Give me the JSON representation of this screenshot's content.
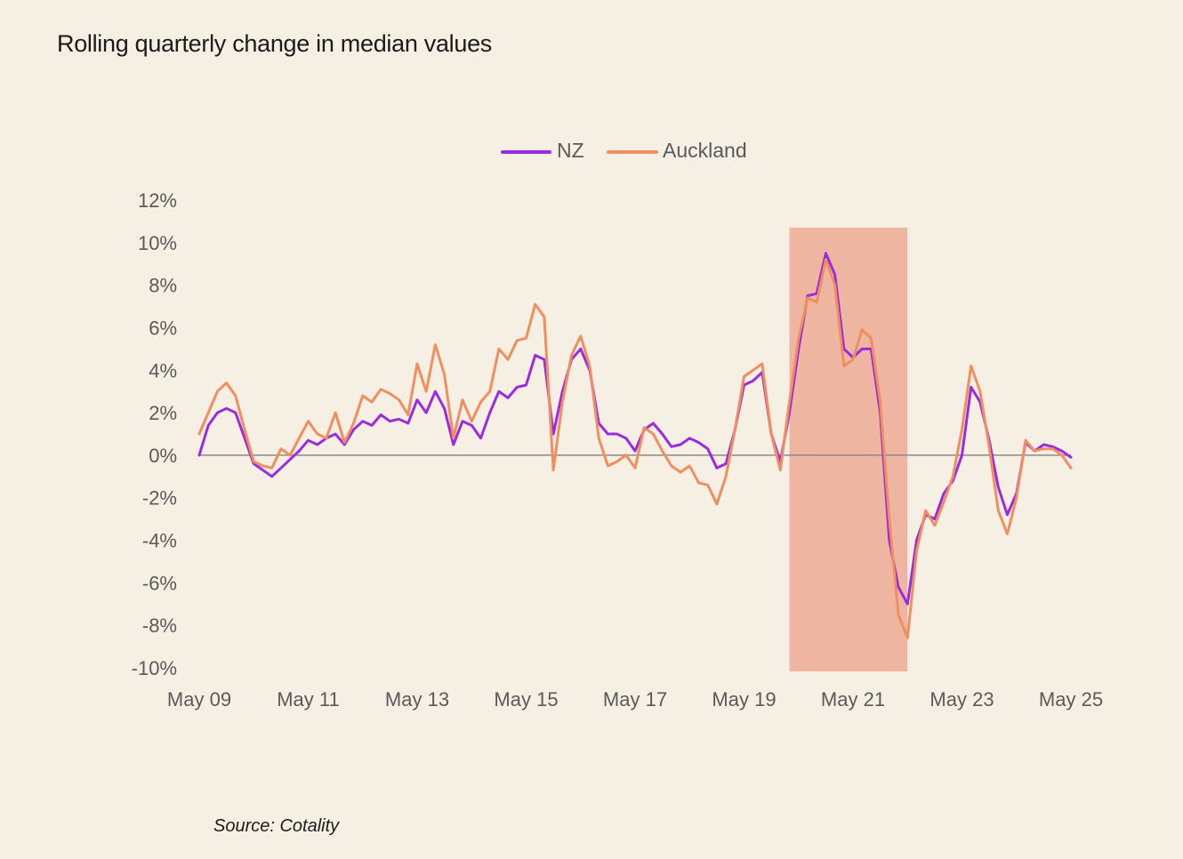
{
  "title": "Rolling quarterly change in median values",
  "source": "Source: Cotality",
  "chart_data": {
    "type": "line",
    "ylim": [
      -10,
      12
    ],
    "y_ticks": [
      12,
      10,
      8,
      6,
      4,
      2,
      0,
      -2,
      -4,
      -6,
      -8,
      -10
    ],
    "y_tick_labels": [
      "12%",
      "10%",
      "8%",
      "6%",
      "4%",
      "2%",
      "0%",
      "-2%",
      "-4%",
      "-6%",
      "-8%",
      "-10%"
    ],
    "x_range": [
      "2009-05",
      "2025-05"
    ],
    "x_ticks": [
      "2009-05",
      "2011-05",
      "2013-05",
      "2015-05",
      "2017-05",
      "2019-05",
      "2021-05",
      "2023-05",
      "2025-05"
    ],
    "x_tick_labels": [
      "May 09",
      "May 11",
      "May 13",
      "May 15",
      "May 17",
      "May 19",
      "May 21",
      "May 23",
      "May 25"
    ],
    "zero_line": true,
    "grid": false,
    "legend_position": "top-center",
    "highlight_band": {
      "from": "2020-03",
      "to": "2022-05",
      "color": "#eeb6a1"
    },
    "series": [
      {
        "name": "NZ",
        "color": "#9b2bdf",
        "points": [
          [
            "2009-05",
            0.0
          ],
          [
            "2009-07",
            1.4
          ],
          [
            "2009-09",
            2.0
          ],
          [
            "2009-11",
            2.2
          ],
          [
            "2010-01",
            2.0
          ],
          [
            "2010-03",
            0.8
          ],
          [
            "2010-05",
            -0.4
          ],
          [
            "2010-07",
            -0.7
          ],
          [
            "2010-09",
            -1.0
          ],
          [
            "2010-11",
            -0.6
          ],
          [
            "2011-01",
            -0.2
          ],
          [
            "2011-03",
            0.2
          ],
          [
            "2011-05",
            0.7
          ],
          [
            "2011-07",
            0.5
          ],
          [
            "2011-09",
            0.8
          ],
          [
            "2011-11",
            1.0
          ],
          [
            "2012-01",
            0.5
          ],
          [
            "2012-03",
            1.2
          ],
          [
            "2012-05",
            1.6
          ],
          [
            "2012-07",
            1.4
          ],
          [
            "2012-09",
            1.9
          ],
          [
            "2012-11",
            1.6
          ],
          [
            "2013-01",
            1.7
          ],
          [
            "2013-03",
            1.5
          ],
          [
            "2013-05",
            2.6
          ],
          [
            "2013-07",
            2.0
          ],
          [
            "2013-09",
            3.0
          ],
          [
            "2013-11",
            2.2
          ],
          [
            "2014-01",
            0.5
          ],
          [
            "2014-03",
            1.6
          ],
          [
            "2014-05",
            1.4
          ],
          [
            "2014-07",
            0.8
          ],
          [
            "2014-09",
            2.0
          ],
          [
            "2014-11",
            3.0
          ],
          [
            "2015-01",
            2.7
          ],
          [
            "2015-03",
            3.2
          ],
          [
            "2015-05",
            3.3
          ],
          [
            "2015-07",
            4.7
          ],
          [
            "2015-09",
            4.5
          ],
          [
            "2015-11",
            1.0
          ],
          [
            "2016-01",
            3.0
          ],
          [
            "2016-03",
            4.5
          ],
          [
            "2016-05",
            5.0
          ],
          [
            "2016-07",
            4.0
          ],
          [
            "2016-09",
            1.5
          ],
          [
            "2016-11",
            1.0
          ],
          [
            "2017-01",
            1.0
          ],
          [
            "2017-03",
            0.8
          ],
          [
            "2017-05",
            0.2
          ],
          [
            "2017-07",
            1.2
          ],
          [
            "2017-09",
            1.5
          ],
          [
            "2017-11",
            1.0
          ],
          [
            "2018-01",
            0.4
          ],
          [
            "2018-03",
            0.5
          ],
          [
            "2018-05",
            0.8
          ],
          [
            "2018-07",
            0.6
          ],
          [
            "2018-09",
            0.3
          ],
          [
            "2018-11",
            -0.6
          ],
          [
            "2019-01",
            -0.4
          ],
          [
            "2019-03",
            1.2
          ],
          [
            "2019-05",
            3.3
          ],
          [
            "2019-07",
            3.5
          ],
          [
            "2019-09",
            3.9
          ],
          [
            "2019-11",
            1.0
          ],
          [
            "2020-01",
            -0.3
          ],
          [
            "2020-03",
            2.0
          ],
          [
            "2020-05",
            5.0
          ],
          [
            "2020-07",
            7.5
          ],
          [
            "2020-09",
            7.6
          ],
          [
            "2020-11",
            9.5
          ],
          [
            "2021-01",
            8.5
          ],
          [
            "2021-03",
            5.0
          ],
          [
            "2021-05",
            4.6
          ],
          [
            "2021-07",
            5.0
          ],
          [
            "2021-09",
            5.0
          ],
          [
            "2021-11",
            2.0
          ],
          [
            "2022-01",
            -4.0
          ],
          [
            "2022-03",
            -6.2
          ],
          [
            "2022-05",
            -7.0
          ],
          [
            "2022-07",
            -4.0
          ],
          [
            "2022-09",
            -2.8
          ],
          [
            "2022-11",
            -3.0
          ],
          [
            "2023-01",
            -1.8
          ],
          [
            "2023-03",
            -1.2
          ],
          [
            "2023-05",
            0.0
          ],
          [
            "2023-07",
            3.2
          ],
          [
            "2023-09",
            2.5
          ],
          [
            "2023-11",
            0.7
          ],
          [
            "2024-01",
            -1.5
          ],
          [
            "2024-03",
            -2.8
          ],
          [
            "2024-05",
            -1.8
          ],
          [
            "2024-07",
            0.6
          ],
          [
            "2024-09",
            0.2
          ],
          [
            "2024-11",
            0.5
          ],
          [
            "2025-01",
            0.4
          ],
          [
            "2025-03",
            0.2
          ],
          [
            "2025-05",
            -0.1
          ]
        ]
      },
      {
        "name": "Auckland",
        "color": "#ef8f60",
        "points": [
          [
            "2009-05",
            1.0
          ],
          [
            "2009-07",
            2.0
          ],
          [
            "2009-09",
            3.0
          ],
          [
            "2009-11",
            3.4
          ],
          [
            "2010-01",
            2.8
          ],
          [
            "2010-03",
            1.2
          ],
          [
            "2010-05",
            -0.3
          ],
          [
            "2010-07",
            -0.5
          ],
          [
            "2010-09",
            -0.6
          ],
          [
            "2010-11",
            0.3
          ],
          [
            "2011-01",
            0.0
          ],
          [
            "2011-03",
            0.8
          ],
          [
            "2011-05",
            1.6
          ],
          [
            "2011-07",
            1.0
          ],
          [
            "2011-09",
            0.8
          ],
          [
            "2011-11",
            2.0
          ],
          [
            "2012-01",
            0.6
          ],
          [
            "2012-03",
            1.5
          ],
          [
            "2012-05",
            2.8
          ],
          [
            "2012-07",
            2.5
          ],
          [
            "2012-09",
            3.1
          ],
          [
            "2012-11",
            2.9
          ],
          [
            "2013-01",
            2.6
          ],
          [
            "2013-03",
            1.9
          ],
          [
            "2013-05",
            4.3
          ],
          [
            "2013-07",
            3.0
          ],
          [
            "2013-09",
            5.2
          ],
          [
            "2013-11",
            3.8
          ],
          [
            "2014-01",
            0.8
          ],
          [
            "2014-03",
            2.6
          ],
          [
            "2014-05",
            1.6
          ],
          [
            "2014-07",
            2.5
          ],
          [
            "2014-09",
            3.0
          ],
          [
            "2014-11",
            5.0
          ],
          [
            "2015-01",
            4.5
          ],
          [
            "2015-03",
            5.4
          ],
          [
            "2015-05",
            5.5
          ],
          [
            "2015-07",
            7.1
          ],
          [
            "2015-09",
            6.5
          ],
          [
            "2015-11",
            -0.7
          ],
          [
            "2016-01",
            2.5
          ],
          [
            "2016-03",
            4.7
          ],
          [
            "2016-05",
            5.6
          ],
          [
            "2016-07",
            4.2
          ],
          [
            "2016-09",
            0.8
          ],
          [
            "2016-11",
            -0.5
          ],
          [
            "2017-01",
            -0.3
          ],
          [
            "2017-03",
            0.0
          ],
          [
            "2017-05",
            -0.6
          ],
          [
            "2017-07",
            1.3
          ],
          [
            "2017-09",
            1.0
          ],
          [
            "2017-11",
            0.2
          ],
          [
            "2018-01",
            -0.5
          ],
          [
            "2018-03",
            -0.8
          ],
          [
            "2018-05",
            -0.5
          ],
          [
            "2018-07",
            -1.3
          ],
          [
            "2018-09",
            -1.4
          ],
          [
            "2018-11",
            -2.3
          ],
          [
            "2019-01",
            -1.0
          ],
          [
            "2019-03",
            1.2
          ],
          [
            "2019-05",
            3.7
          ],
          [
            "2019-07",
            4.0
          ],
          [
            "2019-09",
            4.3
          ],
          [
            "2019-11",
            1.0
          ],
          [
            "2020-01",
            -0.7
          ],
          [
            "2020-03",
            2.5
          ],
          [
            "2020-05",
            5.5
          ],
          [
            "2020-07",
            7.4
          ],
          [
            "2020-09",
            7.2
          ],
          [
            "2020-11",
            9.2
          ],
          [
            "2021-01",
            8.0
          ],
          [
            "2021-03",
            4.2
          ],
          [
            "2021-05",
            4.5
          ],
          [
            "2021-07",
            5.9
          ],
          [
            "2021-09",
            5.5
          ],
          [
            "2021-11",
            2.5
          ],
          [
            "2022-01",
            -3.0
          ],
          [
            "2022-03",
            -7.5
          ],
          [
            "2022-05",
            -8.6
          ],
          [
            "2022-07",
            -4.5
          ],
          [
            "2022-09",
            -2.6
          ],
          [
            "2022-11",
            -3.3
          ],
          [
            "2023-01",
            -2.2
          ],
          [
            "2023-03",
            -1.0
          ],
          [
            "2023-05",
            1.2
          ],
          [
            "2023-07",
            4.2
          ],
          [
            "2023-09",
            3.0
          ],
          [
            "2023-11",
            0.4
          ],
          [
            "2024-01",
            -2.6
          ],
          [
            "2024-03",
            -3.7
          ],
          [
            "2024-05",
            -2.0
          ],
          [
            "2024-07",
            0.7
          ],
          [
            "2024-09",
            0.2
          ],
          [
            "2024-11",
            0.3
          ],
          [
            "2025-01",
            0.3
          ],
          [
            "2025-03",
            0.0
          ],
          [
            "2025-05",
            -0.6
          ]
        ]
      }
    ]
  }
}
